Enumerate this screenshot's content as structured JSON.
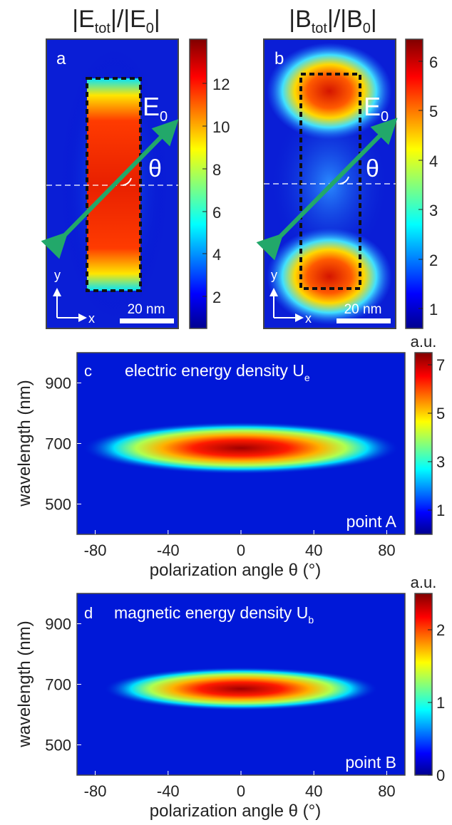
{
  "panel_a": {
    "title_prefix": "|E",
    "title_sub": "tot",
    "title_mid": "|/|E",
    "title_sub2": "0",
    "title_suffix": "|",
    "letter": "a",
    "field_label": "E",
    "field_sub": "0",
    "angle_label": "θ",
    "axis_y": "y",
    "axis_x": "x",
    "scale_bar": "20 nm",
    "colorbar_ticks": [
      "12",
      "10",
      "8",
      "6",
      "4",
      "2"
    ]
  },
  "panel_b": {
    "title_prefix": "|B",
    "title_sub": "tot",
    "title_mid": "|/|B",
    "title_sub2": "0",
    "title_suffix": "|",
    "letter": "b",
    "field_label": "E",
    "field_sub": "0",
    "angle_label": "θ",
    "axis_y": "y",
    "axis_x": "x",
    "scale_bar": "20 nm",
    "colorbar_ticks": [
      "6",
      "5",
      "4",
      "3",
      "2",
      "1"
    ]
  },
  "chart_data": [
    {
      "type": "heatmap",
      "panel": "c",
      "title": "electric energy density U",
      "title_sub": "e",
      "annotation": "point A",
      "xlabel": "polarization angle θ (°)",
      "ylabel": "wavelength (nm)",
      "xlim": [
        -90,
        90
      ],
      "ylim": [
        400,
        1000
      ],
      "xticks": [
        -80,
        -40,
        0,
        40,
        80
      ],
      "yticks": [
        500,
        700,
        900
      ],
      "colorbar_label": "a.u.",
      "colorbar_range": [
        0,
        7.5
      ],
      "colorbar_ticks": [
        7,
        5,
        3,
        1
      ],
      "peak": {
        "x": 0,
        "y": 685,
        "value": 7.2
      },
      "x_half_width": 60,
      "y_half_width": 24
    },
    {
      "type": "heatmap",
      "panel": "d",
      "title": "magnetic energy density U",
      "title_sub": "b",
      "annotation": "point B",
      "xlabel": "polarization angle θ (°)",
      "ylabel": "wavelength (nm)",
      "xlim": [
        -90,
        90
      ],
      "ylim": [
        400,
        1000
      ],
      "xticks": [
        -80,
        -40,
        0,
        40,
        80
      ],
      "yticks": [
        500,
        700,
        900
      ],
      "colorbar_label": "a.u.",
      "colorbar_range": [
        0,
        2.5
      ],
      "colorbar_ticks": [
        2,
        1,
        0
      ],
      "peak": {
        "x": 0,
        "y": 685,
        "value": 2.4
      },
      "x_half_width": 52,
      "y_half_width": 20
    }
  ]
}
